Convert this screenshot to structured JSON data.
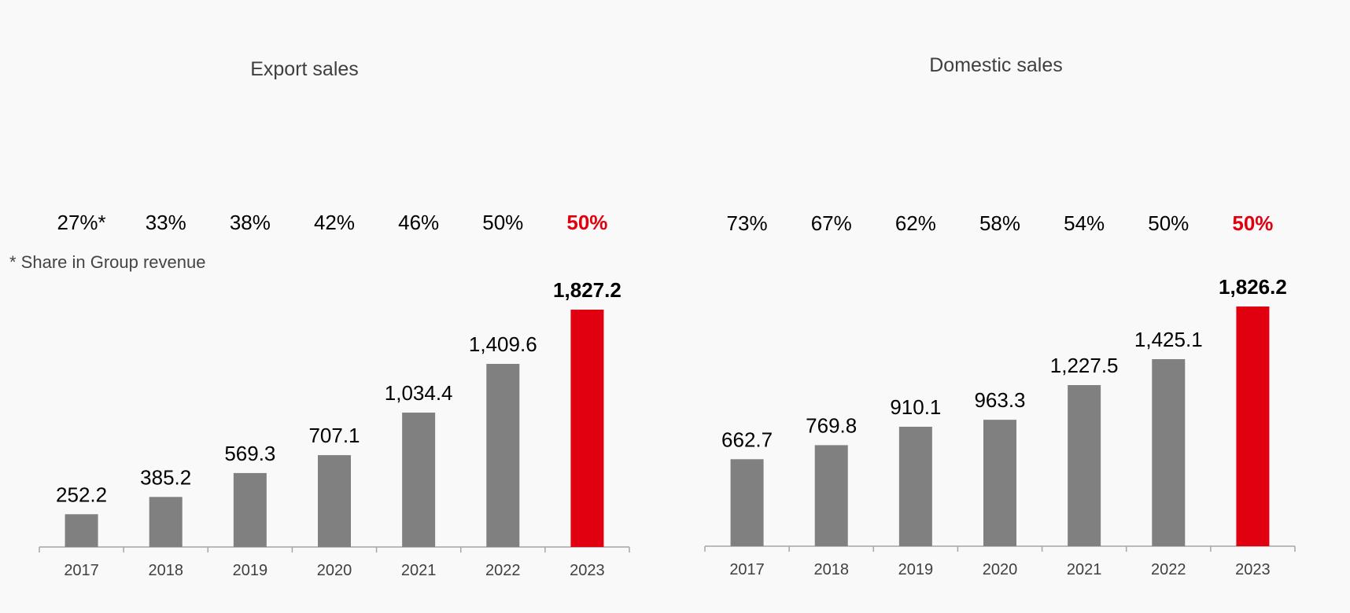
{
  "footnote": "* Share in Group revenue",
  "colors": {
    "bar": "#808080",
    "highlight": "#e1000f",
    "axis": "#a6a6a6",
    "text": "#000000",
    "title": "#3f3f3f"
  },
  "chart_data": [
    {
      "type": "bar",
      "title": "Export sales",
      "categories": [
        "2017",
        "2018",
        "2019",
        "2020",
        "2021",
        "2022",
        "2023"
      ],
      "values": [
        252.2,
        385.2,
        569.3,
        707.1,
        1034.4,
        1409.6,
        1827.2
      ],
      "value_labels": [
        "252.2",
        "385.2",
        "569.3",
        "707.1",
        "1,034.4",
        "1,409.6",
        "1,827.2"
      ],
      "shares": [
        "27%*",
        "33%",
        "38%",
        "42%",
        "46%",
        "50%",
        "50%"
      ],
      "highlight_index": 6,
      "ylim": [
        0,
        1827.2
      ],
      "grid": false,
      "legend": "none"
    },
    {
      "type": "bar",
      "title": "Domestic sales",
      "categories": [
        "2017",
        "2018",
        "2019",
        "2020",
        "2021",
        "2022",
        "2023"
      ],
      "values": [
        662.7,
        769.8,
        910.1,
        963.3,
        1227.5,
        1425.1,
        1826.2
      ],
      "value_labels": [
        "662.7",
        "769.8",
        "910.1",
        "963.3",
        "1,227.5",
        "1,425.1",
        "1,826.2"
      ],
      "shares": [
        "73%",
        "67%",
        "62%",
        "58%",
        "54%",
        "50%",
        "50%"
      ],
      "highlight_index": 6,
      "ylim": [
        0,
        1826.2
      ],
      "grid": false,
      "legend": "none"
    }
  ]
}
